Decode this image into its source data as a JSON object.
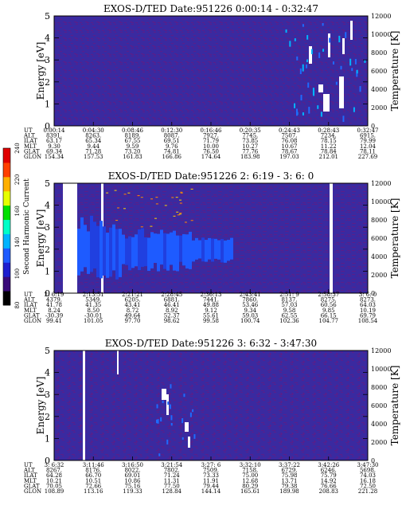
{
  "colorbar": {
    "label": "Second Harmonic Current",
    "ticks": [
      "240",
      "220",
      "160",
      "140",
      "100",
      "80"
    ],
    "colors": [
      "#000000",
      "#3a0a7a",
      "#1e1ecf",
      "#1e5bff",
      "#00b4ff",
      "#00ffc8",
      "#00e000",
      "#e6ff00",
      "#ffb000",
      "#ff4000",
      "#e00000"
    ]
  },
  "chart_data": [
    {
      "type": "heatmap",
      "title": "EXOS-D/TED   Date:951226   0:00:14 - 0:32:47",
      "ylabel": "Energy [eV]",
      "y2label": "Temperature [K]",
      "ylim": [
        0,
        5
      ],
      "y2lim": [
        0,
        12000
      ],
      "yticks": [
        "0",
        "1",
        "2",
        "3",
        "4",
        "5"
      ],
      "y2ticks": [
        "0",
        "2000",
        "4000",
        "6000",
        "8000",
        "10000",
        "12000"
      ],
      "background_color": "#3a2aa0",
      "table": {
        "row_labels": [
          "UT",
          "ALT",
          "ILAT",
          "MLT",
          "GLAT",
          "GLON"
        ],
        "columns": [
          [
            "0:00:14",
            "8391.",
            "63.17",
            "9.30",
            "69.34",
            "154.34"
          ],
          [
            "0:04:30",
            "8263.",
            "65.34",
            "9.44",
            "71.28",
            "157.53"
          ],
          [
            "0:08:46",
            "8189.",
            "67.55",
            "9.59",
            "73.20",
            "161.83"
          ],
          [
            "0:12:30",
            "8087.",
            "69.51",
            "9.76",
            "74.81",
            "166.86"
          ],
          [
            "0:16:46",
            "7927.",
            "71.79",
            "10.00",
            "76.50",
            "174.64"
          ],
          [
            "0:20:35",
            "7745.",
            "73.85",
            "10.27",
            "77.76",
            "183.98"
          ],
          [
            "0:24:43",
            "7507.",
            "76.08",
            "10.67",
            "78.67",
            "197.03"
          ],
          [
            "0:28:43",
            "7234.",
            "78.15",
            "11.22",
            "78.84",
            "212.01"
          ],
          [
            "0:32:47",
            "6915.",
            "79.99",
            "12.04",
            "78.11",
            "227.69"
          ]
        ]
      }
    },
    {
      "type": "heatmap",
      "title": "EXOS-D/TED   Date:951226  2: 6:19 - 3: 6: 0",
      "ylabel": "Energy [eV]",
      "y2label": "Temperature [K]",
      "ylim": [
        0,
        5
      ],
      "y2lim": [
        0,
        12000
      ],
      "yticks": [
        "0",
        "1",
        "2",
        "3",
        "4",
        "5"
      ],
      "y2ticks": [
        "0",
        "2000",
        "4000",
        "6000",
        "8000",
        "10000",
        "12000"
      ],
      "background_color": "#3a2aa0",
      "table": {
        "row_labels": [
          "UT",
          "ALT",
          "ILAT",
          "MLT",
          "GLAT",
          "GLON"
        ],
        "columns": [
          [
            "2: 6:19",
            "4379.",
            "41.78",
            "8.24",
            "-30.39",
            "99.41"
          ],
          [
            "2:13:51",
            "5349.",
            "41.35",
            "8.50",
            "-30.01",
            "101.05"
          ],
          [
            "2:21:21",
            "6205.",
            "43.41",
            "8.72",
            "49.64",
            "97.70"
          ],
          [
            "2:28:45",
            "6881.",
            "46.41",
            "8.92",
            "52.37",
            "98.62"
          ],
          [
            "2:36:13",
            "7441.",
            "49.88",
            "9.12",
            "55.61",
            "99.58"
          ],
          [
            "2:43:41",
            "7860.",
            "53.46",
            "9.34",
            "59.03",
            "100.74"
          ],
          [
            "2:51: 9",
            "8137.",
            "57.03",
            "9.58",
            "62.55",
            "102.36"
          ],
          [
            "2:58:37",
            "8275.",
            "60.56",
            "9.85",
            "66.15",
            "104.77"
          ],
          [
            "3: 6: 0",
            "8273.",
            "64.03",
            "10.19",
            "69.79",
            "108.54"
          ]
        ]
      }
    },
    {
      "type": "heatmap",
      "title": "EXOS-D/TED   Date:951226   3: 6:32 - 3:47:30",
      "ylabel": "Energy [eV]",
      "y2label": "Temperature [K]",
      "ylim": [
        0,
        5
      ],
      "y2lim": [
        0,
        12000
      ],
      "yticks": [
        "0",
        "1",
        "2",
        "3",
        "4",
        "5"
      ],
      "y2ticks": [
        "0",
        "2000",
        "4000",
        "6000",
        "8000",
        "10000",
        "12000"
      ],
      "background_color": "#3a2aa0",
      "table": {
        "row_labels": [
          "UT",
          "ALT",
          "ILAT",
          "MLT",
          "GLAT",
          "GLON"
        ],
        "columns": [
          [
            "3: 6:32",
            "8267.",
            "64.28",
            "10.21",
            "70.05",
            "108.89"
          ],
          [
            "3:11:46",
            "8176.",
            "66.70",
            "10.51",
            "72.66",
            "113.16"
          ],
          [
            "3:16:50",
            "8022.",
            "69.01",
            "10.86",
            "75.16",
            "119.33"
          ],
          [
            "3:21:54",
            "7802.",
            "71.24",
            "11.31",
            "77.50",
            "128.84"
          ],
          [
            "3:27: 6",
            "7509.",
            "73.33",
            "11.91",
            "79.44",
            "144.14"
          ],
          [
            "3:32:10",
            "7158.",
            "75.00",
            "12.68",
            "80.29",
            "165.61"
          ],
          [
            "3:37:22",
            "6729.",
            "75.98",
            "13.71",
            "79.38",
            "189.98"
          ],
          [
            "3:42:26",
            "6246.",
            "75.79",
            "14.92",
            "76.66",
            "208.83"
          ],
          [
            "3:47:30",
            "5698.",
            "74.03",
            "16.18",
            "72.50",
            "221.28"
          ]
        ]
      }
    }
  ]
}
